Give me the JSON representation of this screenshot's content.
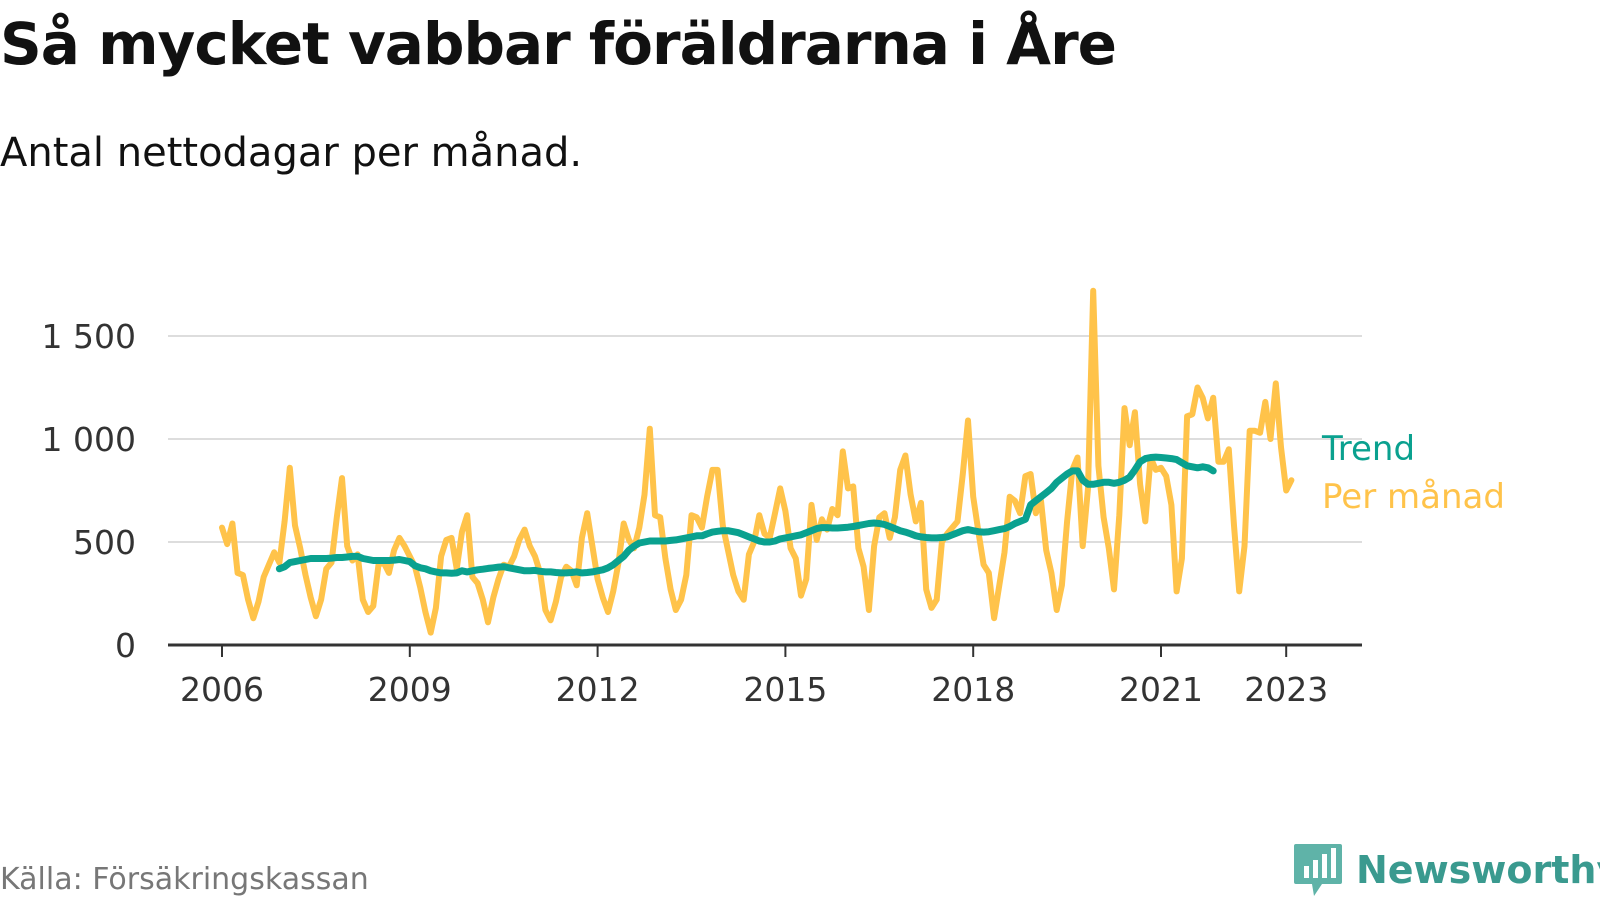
{
  "title": "Så mycket vabbar föräldrarna i Åre",
  "subtitle": "Antal nettodagar per månad.",
  "source": "Källa: Försäkringskassan",
  "brand": {
    "name": "Newsworthy",
    "icon": "newsworthy-logo-icon"
  },
  "colors": {
    "monthly": "#ffc34a",
    "trend": "#0aa18f",
    "grid": "#dddddd",
    "axis": "#333333"
  },
  "chart_data": {
    "type": "line",
    "title": "Så mycket vabbar föräldrarna i Åre",
    "ylabel": "Antal nettodagar per månad",
    "xlabel": "",
    "ylim": [
      0,
      1750
    ],
    "xlim": [
      2004.5,
      2024.2
    ],
    "yticks": [
      0,
      500,
      1000,
      1500
    ],
    "ytick_labels": [
      "0",
      "500",
      "1 000",
      "1 500"
    ],
    "xticks": [
      2006,
      2009,
      2012,
      2015,
      2018,
      2021,
      2023
    ],
    "xtick_labels": [
      "2006",
      "2009",
      "2012",
      "2015",
      "2018",
      "2021",
      "2023"
    ],
    "series": [
      {
        "name": "Per månad",
        "color": "#ffc34a",
        "start_year": 2006.0,
        "step": 0.0833333,
        "values": [
          570,
          490,
          590,
          350,
          340,
          220,
          130,
          210,
          330,
          390,
          450,
          400,
          600,
          860,
          580,
          470,
          340,
          230,
          140,
          220,
          370,
          400,
          620,
          810,
          480,
          410,
          440,
          220,
          160,
          190,
          390,
          400,
          350,
          460,
          520,
          480,
          430,
          380,
          280,
          160,
          60,
          180,
          430,
          510,
          520,
          370,
          550,
          630,
          330,
          300,
          220,
          110,
          230,
          320,
          390,
          380,
          430,
          510,
          560,
          480,
          430,
          350,
          170,
          120,
          210,
          330,
          380,
          360,
          290,
          520,
          640,
          480,
          320,
          230,
          160,
          260,
          400,
          590,
          510,
          470,
          570,
          730,
          1050,
          630,
          620,
          420,
          270,
          170,
          220,
          340,
          630,
          620,
          570,
          720,
          850,
          850,
          580,
          460,
          340,
          260,
          220,
          440,
          500,
          630,
          540,
          520,
          640,
          760,
          650,
          470,
          420,
          240,
          320,
          680,
          510,
          610,
          560,
          660,
          630,
          940,
          760,
          770,
          470,
          380,
          170,
          480,
          620,
          640,
          520,
          620,
          850,
          920,
          730,
          600,
          690,
          270,
          180,
          220,
          500,
          540,
          570,
          600,
          830,
          1090,
          720,
          550,
          390,
          350,
          130,
          290,
          450,
          720,
          700,
          640,
          820,
          830,
          640,
          700,
          460,
          350,
          170,
          290,
          600,
          850,
          910,
          480,
          760,
          1720,
          870,
          620,
          470,
          270,
          630,
          1150,
          970,
          1130,
          780,
          600,
          910,
          850,
          860,
          820,
          680,
          260,
          420,
          1110,
          1120,
          1250,
          1200,
          1100,
          1200,
          890,
          890,
          950,
          580,
          260,
          480,
          1040,
          1040,
          1030,
          1180,
          1000,
          1270,
          960,
          750,
          800
        ]
      },
      {
        "name": "Trend",
        "color": "#0aa18f",
        "start_year": 2006.917,
        "step": 0.0833333,
        "values": [
          370,
          380,
          400,
          405,
          410,
          415,
          420,
          420,
          420,
          420,
          422,
          425,
          425,
          427,
          430,
          430,
          420,
          415,
          410,
          410,
          410,
          410,
          412,
          415,
          410,
          405,
          385,
          375,
          370,
          360,
          355,
          350,
          350,
          348,
          350,
          360,
          355,
          360,
          365,
          368,
          372,
          375,
          378,
          380,
          375,
          370,
          365,
          360,
          360,
          362,
          358,
          355,
          355,
          352,
          350,
          350,
          352,
          355,
          350,
          352,
          355,
          360,
          365,
          375,
          390,
          410,
          430,
          460,
          480,
          495,
          500,
          505,
          505,
          505,
          505,
          508,
          510,
          515,
          520,
          525,
          530,
          530,
          540,
          548,
          552,
          555,
          555,
          550,
          545,
          535,
          525,
          515,
          505,
          500,
          500,
          505,
          515,
          520,
          525,
          530,
          535,
          545,
          555,
          565,
          570,
          570,
          568,
          568,
          570,
          572,
          575,
          580,
          585,
          590,
          592,
          590,
          585,
          575,
          565,
          555,
          548,
          540,
          530,
          525,
          522,
          520,
          520,
          522,
          525,
          535,
          545,
          555,
          560,
          555,
          550,
          548,
          550,
          555,
          560,
          565,
          575,
          590,
          600,
          610,
          680,
          700,
          720,
          740,
          760,
          790,
          810,
          830,
          845,
          845,
          800,
          780,
          780,
          785,
          790,
          790,
          785,
          790,
          800,
          815,
          850,
          890,
          905,
          910,
          912,
          910,
          908,
          905,
          900,
          885,
          870,
          865,
          860,
          865,
          860,
          845
        ]
      }
    ],
    "legend": [
      {
        "name": "Trend",
        "placement": "right-end"
      },
      {
        "name": "Per månad",
        "placement": "right-end"
      }
    ],
    "grid": true
  }
}
